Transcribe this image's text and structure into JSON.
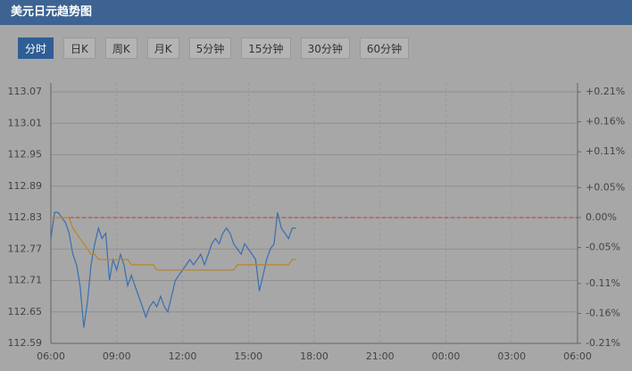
{
  "header": {
    "title": "美元日元趋势图"
  },
  "tabs": [
    "分时",
    "日K",
    "周K",
    "月K",
    "5分钟",
    "15分钟",
    "30分钟",
    "60分钟"
  ],
  "active_tab": 0,
  "chart_data": {
    "type": "line",
    "x": [
      6,
      6.17,
      6.33,
      6.5,
      6.67,
      6.83,
      7,
      7.17,
      7.33,
      7.5,
      7.67,
      7.83,
      8,
      8.17,
      8.33,
      8.5,
      8.67,
      8.83,
      9,
      9.17,
      9.33,
      9.5,
      9.67,
      9.83,
      10,
      10.17,
      10.33,
      10.5,
      10.67,
      10.83,
      11,
      11.17,
      11.33,
      11.5,
      11.67,
      11.83,
      12,
      12.17,
      12.33,
      12.5,
      12.67,
      12.83,
      13,
      13.17,
      13.33,
      13.5,
      13.67,
      13.83,
      14,
      14.17,
      14.33,
      14.5,
      14.67,
      14.83,
      15,
      15.17,
      15.33,
      15.5,
      15.67,
      15.83,
      16,
      16.17,
      16.33,
      16.5,
      16.67,
      16.83,
      17,
      17.17
    ],
    "series": [
      {
        "color": "#3a6fb0",
        "values": [
          112.79,
          112.84,
          112.84,
          112.83,
          112.82,
          112.8,
          112.76,
          112.74,
          112.7,
          112.62,
          112.67,
          112.74,
          112.78,
          112.81,
          112.79,
          112.8,
          112.71,
          112.75,
          112.73,
          112.76,
          112.74,
          112.7,
          112.72,
          112.7,
          112.68,
          112.66,
          112.64,
          112.66,
          112.67,
          112.66,
          112.68,
          112.66,
          112.65,
          112.68,
          112.71,
          112.72,
          112.73,
          112.74,
          112.75,
          112.74,
          112.75,
          112.76,
          112.74,
          112.76,
          112.78,
          112.79,
          112.78,
          112.8,
          112.81,
          112.8,
          112.78,
          112.77,
          112.76,
          112.78,
          112.77,
          112.76,
          112.75,
          112.69,
          112.72,
          112.75,
          112.77,
          112.78,
          112.84,
          112.81,
          112.8,
          112.79,
          112.81,
          112.81
        ]
      },
      {
        "color": "#b8862a",
        "values": [
          112.83,
          112.83,
          112.83,
          112.83,
          112.83,
          112.83,
          112.81,
          112.8,
          112.79,
          112.78,
          112.77,
          112.76,
          112.76,
          112.75,
          112.75,
          112.75,
          112.75,
          112.75,
          112.75,
          112.75,
          112.75,
          112.75,
          112.74,
          112.74,
          112.74,
          112.74,
          112.74,
          112.74,
          112.74,
          112.73,
          112.73,
          112.73,
          112.73,
          112.73,
          112.73,
          112.73,
          112.73,
          112.73,
          112.73,
          112.73,
          112.73,
          112.73,
          112.73,
          112.73,
          112.73,
          112.73,
          112.73,
          112.73,
          112.73,
          112.73,
          112.73,
          112.74,
          112.74,
          112.74,
          112.74,
          112.74,
          112.74,
          112.74,
          112.74,
          112.74,
          112.74,
          112.74,
          112.74,
          112.74,
          112.74,
          112.74,
          112.75,
          112.75
        ]
      }
    ],
    "baseline": 112.83,
    "xlim": [
      6,
      30
    ],
    "xticks": [
      {
        "value": 6,
        "label": "06:00"
      },
      {
        "value": 9,
        "label": "09:00"
      },
      {
        "value": 12,
        "label": "12:00"
      },
      {
        "value": 15,
        "label": "15:00"
      },
      {
        "value": 18,
        "label": "18:00"
      },
      {
        "value": 21,
        "label": "21:00"
      },
      {
        "value": 24,
        "label": "00:00"
      },
      {
        "value": 27,
        "label": "03:00"
      },
      {
        "value": 30,
        "label": "06:00"
      }
    ],
    "ylim": [
      112.59,
      113.07
    ],
    "yticks": [
      112.59,
      112.65,
      112.71,
      112.77,
      112.83,
      112.89,
      112.95,
      113.01,
      113.07
    ],
    "y2lim": [
      -0.21,
      0.21
    ],
    "y2ticks": [
      {
        "value": -0.21,
        "label": "-0.21%"
      },
      {
        "value": -0.16,
        "label": "-0.16%"
      },
      {
        "value": -0.11,
        "label": "-0.11%"
      },
      {
        "value": -0.05,
        "label": "-0.05%"
      },
      {
        "value": 0,
        "label": "0.00%"
      },
      {
        "value": 0.05,
        "label": "+0.05%"
      },
      {
        "value": 0.11,
        "label": "+0.11%"
      },
      {
        "value": 0.16,
        "label": "+0.16%"
      },
      {
        "value": 0.21,
        "label": "+0.21%"
      }
    ],
    "grid": true
  }
}
